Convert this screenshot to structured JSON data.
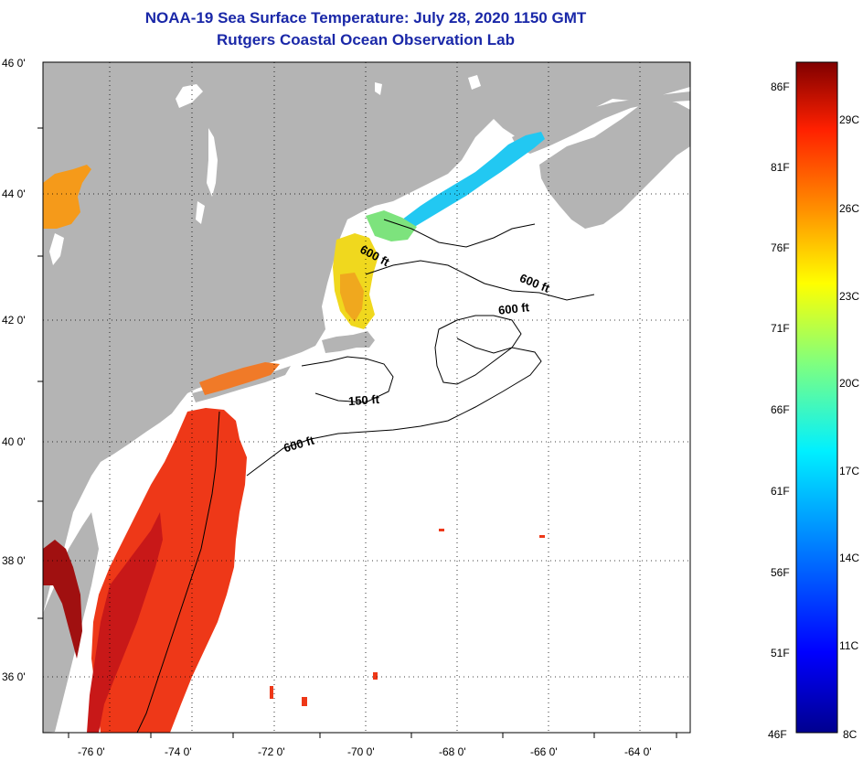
{
  "title": "NOAA-19 Sea Surface Temperature:  July 28, 2020 1150 GMT",
  "subtitle": "Rutgers Coastal Ocean Observation Lab",
  "axes": {
    "lon_labels": [
      "-76 0'",
      "-74 0'",
      "-72 0'",
      "-70 0'",
      "-68 0'",
      "-66 0'",
      "-64 0'"
    ],
    "lat_labels": [
      "46 0'",
      "44 0'",
      "42 0'",
      "40 0'",
      "38 0'",
      "36 0'"
    ]
  },
  "contour_labels": [
    {
      "text": "600 ft",
      "id": "gulf-maine-600-a"
    },
    {
      "text": "600 ft",
      "id": "gulf-maine-600-b"
    },
    {
      "text": "600 ft",
      "id": "georges-600"
    },
    {
      "text": "150 ft",
      "id": "nantucket-150"
    },
    {
      "text": "600 ft",
      "id": "shelf-600"
    }
  ],
  "colorbar": {
    "fahrenheit": [
      "86F",
      "81F",
      "76F",
      "71F",
      "66F",
      "61F",
      "56F",
      "51F",
      "46F"
    ],
    "celsius": [
      "29C",
      "26C",
      "23C",
      "20C",
      "17C",
      "14C",
      "11C",
      "8C"
    ]
  },
  "colors": {
    "title": "#1a28a8",
    "land": "#b4b4b4",
    "no_data": "#ffffff"
  }
}
